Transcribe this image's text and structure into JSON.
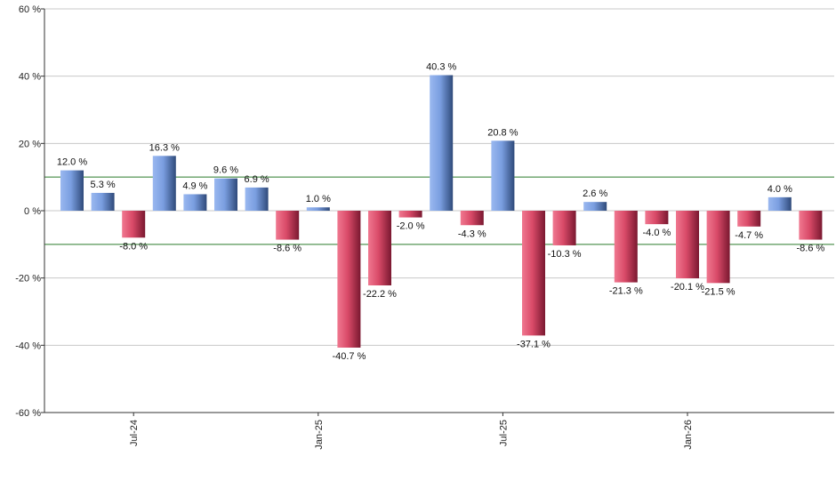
{
  "chart_data": {
    "type": "bar",
    "title": "",
    "xlabel": "",
    "ylabel": "",
    "ylim": [
      -60,
      60
    ],
    "yticks": [
      60,
      40,
      20,
      0,
      -20,
      -40,
      -60
    ],
    "ytick_labels": [
      "60 %",
      "40 %",
      "20 %",
      "0 %",
      "-20 %",
      "-40 %",
      "-60 %"
    ],
    "grid": true,
    "reference_lines": [
      10,
      -10
    ],
    "x_tick_labels": [
      {
        "index": 2,
        "label": "Jul-24"
      },
      {
        "index": 8,
        "label": "Jan-25"
      },
      {
        "index": 14,
        "label": "Jul-25"
      },
      {
        "index": 20,
        "label": "Jan-26"
      }
    ],
    "values": [
      12.0,
      5.3,
      -8.0,
      16.3,
      4.9,
      9.6,
      6.9,
      -8.6,
      1.0,
      -40.7,
      -22.2,
      -2.0,
      40.3,
      -4.3,
      20.8,
      -37.1,
      -10.3,
      2.6,
      -21.3,
      -4.0,
      -20.1,
      -21.5,
      -4.7,
      4.0,
      -8.6
    ],
    "labels": [
      "12.0 %",
      "5.3 %",
      "-8.0 %",
      "16.3 %",
      "4.9 %",
      "9.6 %",
      "6.9 %",
      "-8.6 %",
      "1.0 %",
      "-40.7 %",
      "-22.2 %",
      "-2.0 %",
      "40.3 %",
      "-4.3 %",
      "20.8 %",
      "-37.1 %",
      "-10.3 %",
      "2.6 %",
      "-21.3 %",
      "-4.0 %",
      "-20.1 %",
      "-21.5 %",
      "-4.7 %",
      "4.0 %",
      "-8.6 %"
    ],
    "colors": {
      "positive": "#7a9ee0",
      "positive_dark": "#2f4a7a",
      "negative": "#d94a68",
      "negative_dark": "#7a1830",
      "grid": "#c8c8c8",
      "reference": "#2a7a2a",
      "axis": "#333333"
    }
  }
}
